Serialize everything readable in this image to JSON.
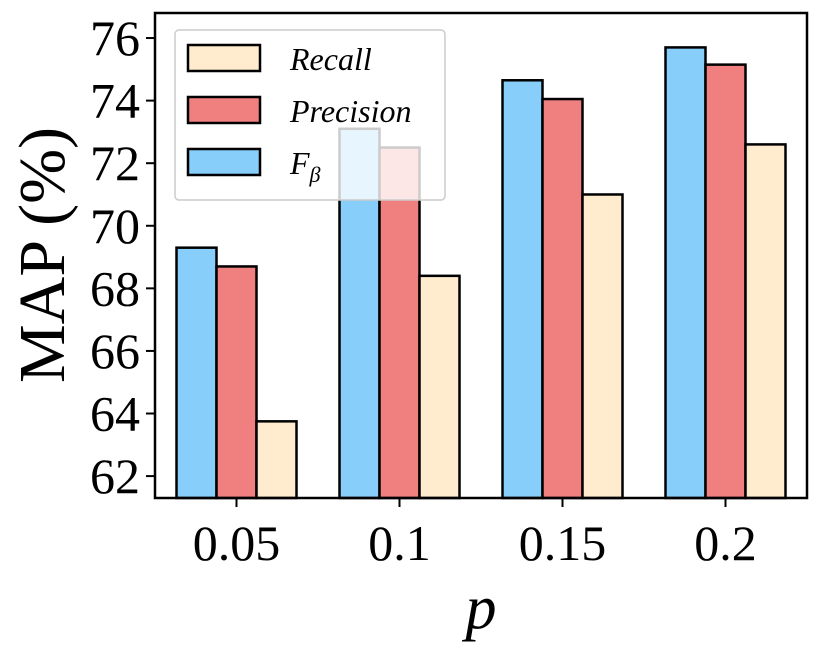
{
  "chart_data": {
    "type": "bar",
    "title": "",
    "xlabel": "p",
    "ylabel": "MAP (%)",
    "categories": [
      "0.05",
      "0.1",
      "0.15",
      "0.2"
    ],
    "ylim": [
      61.3,
      76.8
    ],
    "yticks": [
      62,
      64,
      66,
      68,
      70,
      72,
      74,
      76
    ],
    "series": [
      {
        "name": "F",
        "subscript": "β",
        "color": "#87CEFA",
        "values": [
          69.3,
          73.1,
          74.65,
          75.7
        ]
      },
      {
        "name": "Precision",
        "color": "#F08080",
        "values": [
          68.7,
          72.5,
          74.05,
          75.15
        ]
      },
      {
        "name": "Recall",
        "color": "#FFEBCD",
        "values": [
          63.75,
          68.4,
          71.0,
          72.6
        ]
      }
    ],
    "legend": {
      "position": "top-left",
      "entries": [
        {
          "label": "Recall",
          "color": "#FFEBCD"
        },
        {
          "label": "Precision",
          "color": "#F08080"
        },
        {
          "label": "F",
          "subscript": "β",
          "color": "#87CEFA"
        }
      ]
    },
    "grid": false
  }
}
